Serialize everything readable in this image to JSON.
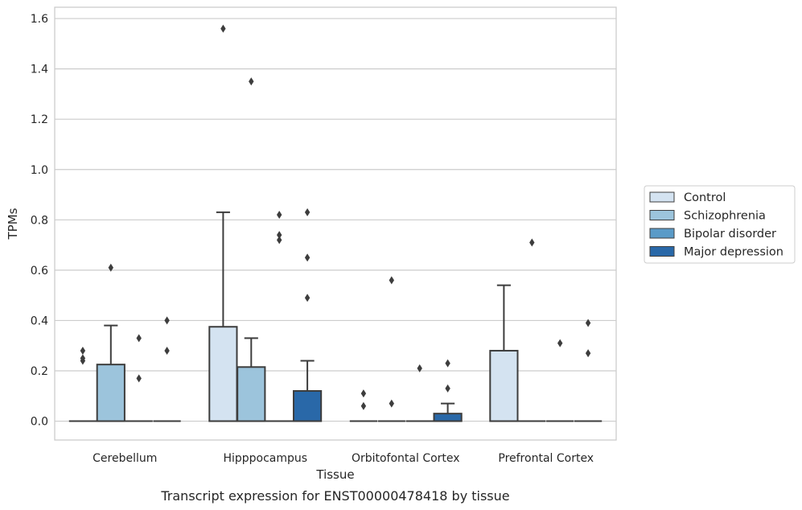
{
  "chart_data": {
    "type": "box",
    "title": "",
    "caption": "Transcript expression for ENST00000478418 by tissue",
    "xlabel": "Tissue",
    "ylabel": "TPMs",
    "ylim": [
      -0.075,
      1.645
    ],
    "yticks": [
      "0.0",
      "0.2",
      "0.4",
      "0.6",
      "0.8",
      "1.0",
      "1.2",
      "1.4",
      "1.6"
    ],
    "grid": "horizontal",
    "legend_position": "right",
    "categories": [
      "Cerebellum",
      "Hipppocampus",
      "Orbitofontal Cortex",
      "Prefrontal Cortex"
    ],
    "series": [
      {
        "name": "Control",
        "color": "#d4e3f1",
        "boxes": [
          {
            "q1": 0,
            "median": 0,
            "q3": 0,
            "whisker_low": 0,
            "whisker_high": 0,
            "outliers": [
              0.24,
              0.25,
              0.28
            ]
          },
          {
            "q1": 0,
            "median": 0,
            "q3": 0.375,
            "whisker_low": 0,
            "whisker_high": 0.83,
            "outliers": [
              1.56
            ]
          },
          {
            "q1": 0,
            "median": 0,
            "q3": 0,
            "whisker_low": 0,
            "whisker_high": 0,
            "outliers": [
              0.06,
              0.11
            ]
          },
          {
            "q1": 0,
            "median": 0,
            "q3": 0.28,
            "whisker_low": 0,
            "whisker_high": 0.54,
            "outliers": []
          }
        ]
      },
      {
        "name": "Schizophrenia",
        "color": "#9cc4dc",
        "boxes": [
          {
            "q1": 0,
            "median": 0,
            "q3": 0.225,
            "whisker_low": 0,
            "whisker_high": 0.38,
            "outliers": [
              0.61
            ]
          },
          {
            "q1": 0,
            "median": 0,
            "q3": 0.215,
            "whisker_low": 0,
            "whisker_high": 0.33,
            "outliers": [
              1.35
            ]
          },
          {
            "q1": 0,
            "median": 0,
            "q3": 0,
            "whisker_low": 0,
            "whisker_high": 0,
            "outliers": [
              0.07,
              0.56
            ]
          },
          {
            "q1": 0,
            "median": 0,
            "q3": 0,
            "whisker_low": 0,
            "whisker_high": 0,
            "outliers": [
              0.71
            ]
          }
        ]
      },
      {
        "name": "Bipolar disorder",
        "color": "#5a9bc8",
        "boxes": [
          {
            "q1": 0,
            "median": 0,
            "q3": 0,
            "whisker_low": 0,
            "whisker_high": 0,
            "outliers": [
              0.17,
              0.33
            ]
          },
          {
            "q1": 0,
            "median": 0,
            "q3": 0,
            "whisker_low": 0,
            "whisker_high": 0,
            "outliers": [
              0.72,
              0.74,
              0.82
            ]
          },
          {
            "q1": 0,
            "median": 0,
            "q3": 0,
            "whisker_low": 0,
            "whisker_high": 0,
            "outliers": [
              0.21
            ]
          },
          {
            "q1": 0,
            "median": 0,
            "q3": 0,
            "whisker_low": 0,
            "whisker_high": 0,
            "outliers": [
              0.31
            ]
          }
        ]
      },
      {
        "name": "Major depression",
        "color": "#2968a8",
        "boxes": [
          {
            "q1": 0,
            "median": 0,
            "q3": 0,
            "whisker_low": 0,
            "whisker_high": 0,
            "outliers": [
              0.28,
              0.4
            ]
          },
          {
            "q1": 0,
            "median": 0,
            "q3": 0.12,
            "whisker_low": 0,
            "whisker_high": 0.24,
            "outliers": [
              0.49,
              0.65,
              0.83
            ]
          },
          {
            "q1": 0,
            "median": 0,
            "q3": 0.03,
            "whisker_low": 0,
            "whisker_high": 0.07,
            "outliers": [
              0.13,
              0.23
            ]
          },
          {
            "q1": 0,
            "median": 0,
            "q3": 0,
            "whisker_low": 0,
            "whisker_high": 0,
            "outliers": [
              0.27,
              0.39
            ]
          }
        ]
      }
    ]
  }
}
